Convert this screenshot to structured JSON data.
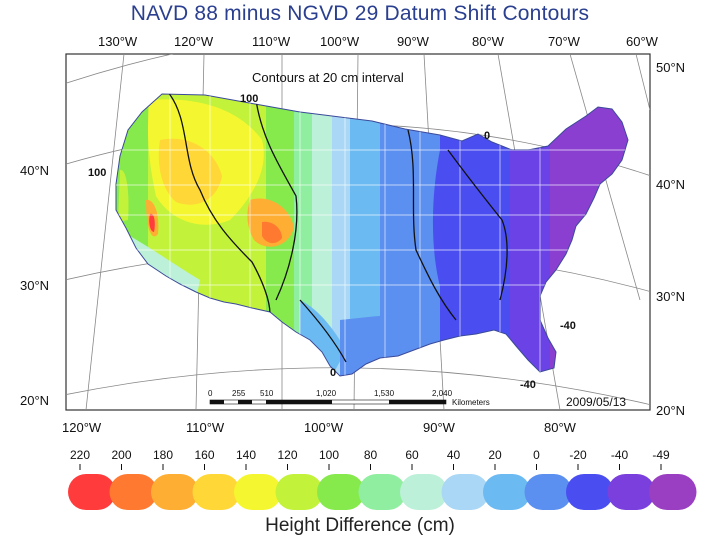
{
  "title": "NAVD 88 minus NGVD 29 Datum Shift Contours",
  "top_longitudes": [
    "130°W",
    "120°W",
    "110°W",
    "100°W",
    "90°W",
    "80°W",
    "70°W",
    "60°W"
  ],
  "bottom_longitudes": [
    "120°W",
    "110°W",
    "100°W",
    "90°W",
    "80°W"
  ],
  "left_latitudes": [
    "40°N",
    "30°N",
    "20°N"
  ],
  "right_latitudes": [
    "50°N",
    "40°N",
    "30°N",
    "20°N"
  ],
  "interval_note": "Contours at 20 cm interval",
  "contour_labels": [
    "100",
    "100",
    "0",
    "0",
    "-40",
    "-40"
  ],
  "date": "2009/05/13",
  "scale_bar": {
    "ticks": [
      "0",
      "255",
      "510",
      "1,020",
      "1,530",
      "2,040"
    ],
    "unit": "Kilometers"
  },
  "legend": {
    "values": [
      "220",
      "200",
      "180",
      "160",
      "140",
      "120",
      "100",
      "80",
      "60",
      "40",
      "20",
      "0",
      "-20",
      "-40",
      "-49"
    ],
    "colors": [
      "#ff3b3b",
      "#ff7a30",
      "#ffae34",
      "#ffd737",
      "#f4f72f",
      "#c2f23a",
      "#86e94c",
      "#90eea0",
      "#bdf0d8",
      "#a9d7f5",
      "#6cbaf2",
      "#5b8ff0",
      "#4a4ef0",
      "#7b3fde",
      "#9a3fc2"
    ],
    "label": "Height Difference (cm)"
  }
}
